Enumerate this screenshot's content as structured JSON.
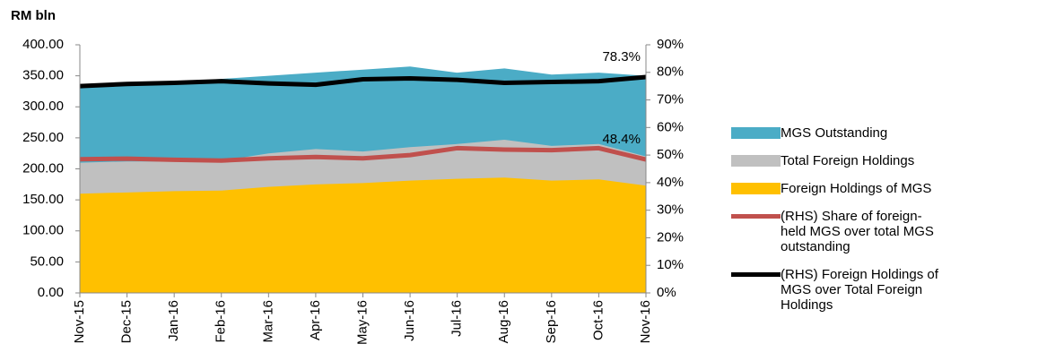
{
  "chart_data": {
    "type": "area-line",
    "y_axis_label": "RM bln",
    "categories": [
      "Nov-15",
      "Dec-15",
      "Jan-16",
      "Feb-16",
      "Mar-16",
      "Apr-16",
      "May-16",
      "Jun-16",
      "Jul-16",
      "Aug-16",
      "Sep-16",
      "Oct-16",
      "Nov-16"
    ],
    "ylim": [
      0,
      400
    ],
    "yticks": [
      {
        "value": 0,
        "label": "0.00"
      },
      {
        "value": 50,
        "label": "50.00"
      },
      {
        "value": 100,
        "label": "100.00"
      },
      {
        "value": 150,
        "label": "150.00"
      },
      {
        "value": 200,
        "label": "200.00"
      },
      {
        "value": 250,
        "label": "250.00"
      },
      {
        "value": 300,
        "label": "300.00"
      },
      {
        "value": 350,
        "label": "350.00"
      },
      {
        "value": 400,
        "label": "400.00"
      }
    ],
    "y2lim": [
      0,
      90
    ],
    "y2ticks": [
      {
        "value": 0,
        "label": "0%"
      },
      {
        "value": 10,
        "label": "10%"
      },
      {
        "value": 20,
        "label": "20%"
      },
      {
        "value": 30,
        "label": "30%"
      },
      {
        "value": 40,
        "label": "40%"
      },
      {
        "value": 50,
        "label": "50%"
      },
      {
        "value": 60,
        "label": "60%"
      },
      {
        "value": 70,
        "label": "70%"
      },
      {
        "value": 80,
        "label": "80%"
      },
      {
        "value": 90,
        "label": "90%"
      }
    ],
    "grid": false,
    "legend": "right",
    "series": [
      {
        "name": "MGS Outstanding",
        "kind": "area",
        "color": "#4bacc6",
        "values": [
          330,
          335,
          340,
          345,
          350,
          355,
          360,
          365,
          355,
          362,
          352,
          355,
          350
        ]
      },
      {
        "name": "Total Foreign Holdings",
        "kind": "area",
        "color": "#c0c0c0",
        "values": [
          210,
          212,
          212,
          213,
          225,
          232,
          228,
          235,
          240,
          247,
          237,
          240,
          220
        ]
      },
      {
        "name": "Foreign Holdings of MGS",
        "kind": "area",
        "color": "#ffc000",
        "values": [
          160,
          162,
          164,
          165,
          171,
          175,
          177,
          181,
          184,
          186,
          181,
          183,
          173
        ]
      },
      {
        "name": "(RHS) Share of foreign-held MGS over total MGS outstanding",
        "kind": "line",
        "axis": "y2",
        "color": "#c0504d",
        "values": [
          48.5,
          48.7,
          48.3,
          48.0,
          48.8,
          49.3,
          48.8,
          50.0,
          52.5,
          52.0,
          51.8,
          52.5,
          48.4
        ],
        "value_labels": [
          null,
          null,
          null,
          null,
          null,
          null,
          null,
          null,
          null,
          null,
          null,
          null,
          "48.4%"
        ]
      },
      {
        "name": "(RHS) Foreign Holdings of MGS over Total Foreign Holdings",
        "kind": "line",
        "axis": "y2",
        "color": "#000000",
        "values": [
          75.0,
          75.8,
          76.2,
          76.8,
          76.0,
          75.5,
          77.5,
          77.8,
          77.3,
          76.2,
          76.5,
          76.8,
          78.3
        ],
        "value_labels": [
          null,
          null,
          null,
          null,
          null,
          null,
          null,
          null,
          null,
          null,
          null,
          null,
          "78.3%"
        ]
      }
    ]
  }
}
